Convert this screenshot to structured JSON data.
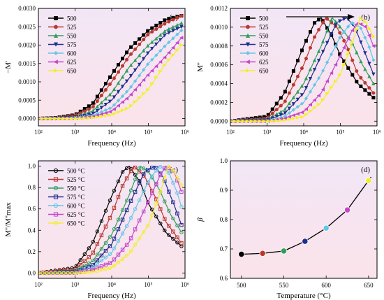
{
  "series_colors": [
    "#000000",
    "#b8392e",
    "#2f9e5c",
    "#1e2f8f",
    "#63c6e6",
    "#c447c9",
    "#f2ef2a"
  ],
  "chart_data": [
    {
      "panel_label": "(a)",
      "type": "line",
      "xscale": "log",
      "xlim": [
        100,
        1000000
      ],
      "ylim": [
        -0.0002,
        0.003
      ],
      "xlabel": "Frequency (Hz)",
      "ylabel": "−M'",
      "xticks": [
        "10²",
        "10³",
        "10⁴",
        "10⁵",
        "10⁶"
      ],
      "yticks": [
        "0.0000",
        "0.0005",
        "0.0010",
        "0.0015",
        "0.0020",
        "0.0025",
        "0.0030"
      ],
      "legend_position": "top-left",
      "grid": false,
      "series": [
        {
          "name": "500",
          "x": [
            100,
            300,
            1000,
            3000,
            10000,
            30000,
            100000,
            300000,
            800000
          ],
          "y": [
            0.0,
            2e-05,
            0.0001,
            0.0004,
            0.0012,
            0.0019,
            0.0024,
            0.0027,
            0.0028
          ]
        },
        {
          "name": "525",
          "x": [
            100,
            300,
            1000,
            3000,
            10000,
            30000,
            100000,
            300000,
            800000
          ],
          "y": [
            0.0,
            1e-05,
            8e-05,
            0.0003,
            0.001,
            0.0017,
            0.0023,
            0.0026,
            0.0028
          ]
        },
        {
          "name": "550",
          "x": [
            100,
            300,
            1000,
            3000,
            10000,
            30000,
            100000,
            300000,
            800000
          ],
          "y": [
            0.0,
            1e-05,
            5e-05,
            0.0002,
            0.0007,
            0.0014,
            0.002,
            0.0024,
            0.0026
          ]
        },
        {
          "name": "575",
          "x": [
            100,
            300,
            1000,
            3000,
            10000,
            30000,
            100000,
            300000,
            800000
          ],
          "y": [
            0.0,
            0.0,
            3e-05,
            0.00012,
            0.0005,
            0.0011,
            0.0018,
            0.0023,
            0.0025
          ]
        },
        {
          "name": "600",
          "x": [
            100,
            300,
            1000,
            3000,
            10000,
            30000,
            100000,
            300000,
            800000
          ],
          "y": [
            0.0,
            0.0,
            2e-05,
            8e-05,
            0.0003,
            0.0008,
            0.0015,
            0.002,
            0.0024
          ]
        },
        {
          "name": "625",
          "x": [
            100,
            300,
            1000,
            3000,
            10000,
            30000,
            100000,
            300000,
            800000
          ],
          "y": [
            0.0,
            0.0,
            1e-05,
            5e-05,
            0.0002,
            0.0006,
            0.0012,
            0.0017,
            0.0022
          ]
        },
        {
          "name": "650",
          "x": [
            100,
            300,
            1000,
            3000,
            10000,
            30000,
            100000,
            300000,
            800000
          ],
          "y": [
            0.0,
            0.0,
            0.0,
            2e-05,
            0.0001,
            0.0003,
            0.0008,
            0.0015,
            0.002
          ]
        }
      ]
    },
    {
      "panel_label": "(b)",
      "type": "line",
      "xscale": "log",
      "xlim": [
        100,
        1000000
      ],
      "ylim": [
        -5e-05,
        0.0012
      ],
      "xlabel": "Frequency (Hz)",
      "ylabel": "M''",
      "xticks": [
        "10²",
        "10³",
        "10⁴",
        "10⁵",
        "10⁶"
      ],
      "yticks": [
        "0.0000",
        "0.0002",
        "0.0004",
        "0.0006",
        "0.0008",
        "0.0010",
        "0.0012"
      ],
      "legend_position": "top-left",
      "annotation": "arrow pointing right (peak shift)",
      "grid": false,
      "series": [
        {
          "name": "500",
          "x": [
            100,
            1000,
            3000,
            10000,
            20000,
            30000,
            60000,
            100000,
            300000,
            800000
          ],
          "y": [
            0.0,
            5e-05,
            0.0003,
            0.0008,
            0.00105,
            0.0011,
            0.0009,
            0.0007,
            0.0004,
            0.00025
          ]
        },
        {
          "name": "525",
          "x": [
            100,
            1000,
            3000,
            10000,
            20000,
            40000,
            80000,
            150000,
            300000,
            800000
          ],
          "y": [
            0.0,
            3e-05,
            0.0002,
            0.0006,
            0.0009,
            0.0011,
            0.001,
            0.0008,
            0.0005,
            0.0003
          ]
        },
        {
          "name": "550",
          "x": [
            100,
            1000,
            3000,
            10000,
            30000,
            60000,
            100000,
            200000,
            400000,
            800000
          ],
          "y": [
            0.0,
            2e-05,
            0.00012,
            0.0004,
            0.0008,
            0.0011,
            0.001,
            0.00085,
            0.0006,
            0.0004
          ]
        },
        {
          "name": "575",
          "x": [
            100,
            1000,
            3000,
            10000,
            30000,
            80000,
            150000,
            250000,
            500000,
            800000
          ],
          "y": [
            0.0,
            1e-05,
            8e-05,
            0.0003,
            0.0007,
            0.00105,
            0.0011,
            0.001,
            0.0007,
            0.0005
          ]
        },
        {
          "name": "600",
          "x": [
            100,
            1000,
            3000,
            10000,
            30000,
            100000,
            200000,
            350000,
            600000,
            800000
          ],
          "y": [
            0.0,
            0.0,
            5e-05,
            0.0002,
            0.0005,
            0.0009,
            0.00105,
            0.001,
            0.0008,
            0.00065
          ]
        },
        {
          "name": "625",
          "x": [
            100,
            1000,
            3000,
            10000,
            30000,
            100000,
            200000,
            300000,
            500000,
            800000
          ],
          "y": [
            0.0,
            0.0,
            3e-05,
            0.0001,
            0.0003,
            0.0007,
            0.00095,
            0.00105,
            0.001,
            0.0008
          ]
        },
        {
          "name": "650",
          "x": [
            100,
            1000,
            3000,
            10000,
            30000,
            100000,
            200000,
            350000,
            500000,
            800000
          ],
          "y": [
            0.0,
            0.0,
            1e-05,
            5e-05,
            0.0002,
            0.0005,
            0.0008,
            0.0011,
            0.00105,
            0.0009
          ]
        }
      ]
    },
    {
      "panel_label": "(c)",
      "type": "line",
      "xscale": "log",
      "xlim": [
        100,
        1000000
      ],
      "ylim": [
        -0.05,
        1.05
      ],
      "xlabel": "Frequency (Hz)",
      "ylabel": "M''/M''max",
      "xticks": [
        "10²",
        "10³",
        "10⁴",
        "10⁵",
        "10⁶"
      ],
      "yticks": [
        "0.0",
        "0.2",
        "0.4",
        "0.6",
        "0.8",
        "1.0"
      ],
      "legend_position": "top-left",
      "grid": false,
      "series": [
        {
          "name": "500 °C",
          "x": [
            100,
            1000,
            3000,
            10000,
            20000,
            30000,
            60000,
            100000,
            300000,
            800000
          ],
          "y": [
            0.0,
            0.05,
            0.28,
            0.72,
            0.95,
            1.0,
            0.85,
            0.65,
            0.38,
            0.25
          ]
        },
        {
          "name": "525 °C",
          "x": [
            100,
            1000,
            3000,
            10000,
            20000,
            40000,
            80000,
            150000,
            300000,
            800000
          ],
          "y": [
            0.0,
            0.03,
            0.18,
            0.55,
            0.82,
            1.0,
            0.9,
            0.72,
            0.48,
            0.28
          ]
        },
        {
          "name": "550 °C",
          "x": [
            100,
            1000,
            3000,
            10000,
            30000,
            60000,
            100000,
            200000,
            400000,
            800000
          ],
          "y": [
            0.0,
            0.02,
            0.11,
            0.36,
            0.73,
            1.0,
            0.95,
            0.78,
            0.55,
            0.38
          ]
        },
        {
          "name": "575 °C",
          "x": [
            100,
            1000,
            3000,
            10000,
            30000,
            80000,
            150000,
            250000,
            500000,
            800000
          ],
          "y": [
            0.0,
            0.01,
            0.07,
            0.27,
            0.64,
            0.95,
            1.0,
            0.9,
            0.64,
            0.45
          ]
        },
        {
          "name": "600 °C",
          "x": [
            100,
            1000,
            3000,
            10000,
            30000,
            100000,
            200000,
            350000,
            600000,
            800000
          ],
          "y": [
            0.0,
            0.0,
            0.05,
            0.19,
            0.48,
            0.86,
            1.0,
            0.95,
            0.76,
            0.62
          ]
        },
        {
          "name": "625 °C",
          "x": [
            100,
            1000,
            3000,
            10000,
            30000,
            100000,
            200000,
            300000,
            500000,
            800000
          ],
          "y": [
            0.0,
            0.0,
            0.03,
            0.1,
            0.29,
            0.67,
            0.9,
            1.0,
            0.95,
            0.76
          ]
        },
        {
          "name": "650 °C",
          "x": [
            100,
            1000,
            3000,
            10000,
            30000,
            100000,
            200000,
            350000,
            500000,
            800000
          ],
          "y": [
            0.0,
            0.0,
            0.01,
            0.05,
            0.18,
            0.45,
            0.73,
            1.0,
            0.95,
            0.82
          ]
        }
      ]
    },
    {
      "panel_label": "(d)",
      "type": "scatter",
      "xscale": "linear",
      "xlim": [
        487,
        660
      ],
      "ylim": [
        0.6,
        1.0
      ],
      "xlabel": "Temperature (°C)",
      "ylabel": "β",
      "xticks": [
        "500",
        "550",
        "600",
        "650"
      ],
      "yticks": [
        "0.6",
        "0.7",
        "0.8",
        "0.9",
        "1.0"
      ],
      "grid": false,
      "fit_line": true,
      "series": [
        {
          "x": [
            500,
            525,
            550,
            575,
            600,
            625,
            650
          ],
          "y": [
            0.682,
            0.685,
            0.693,
            0.726,
            0.771,
            0.833,
            0.933
          ]
        }
      ]
    }
  ]
}
